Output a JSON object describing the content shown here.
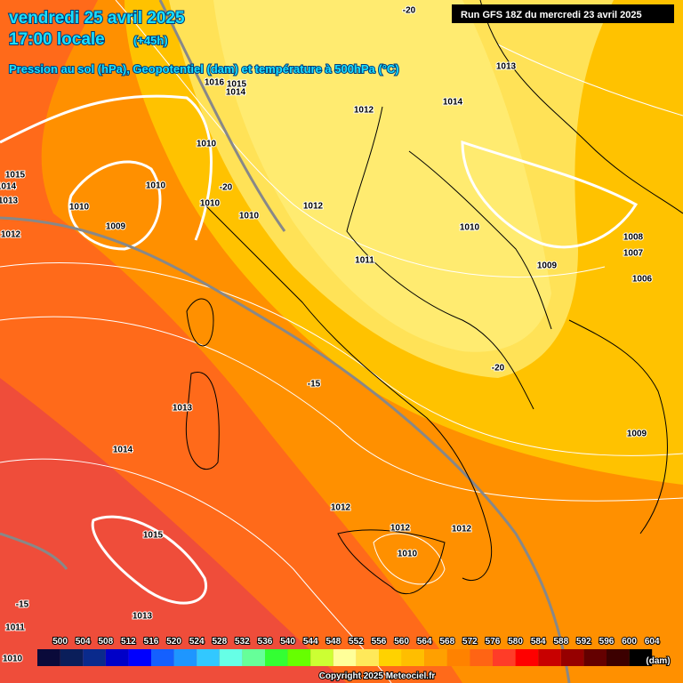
{
  "header": {
    "date": "vendredi 25 avril 2025",
    "time": "17:00 locale",
    "lead": "(+45h)",
    "subtitle": "Pression au sol (hPa), Geopotentiel (dam) et température à 500hPa (°C)",
    "run": "Run GFS 18Z du mercredi 23 avril 2025"
  },
  "map": {
    "isobar_labels": [
      "1013",
      "1016",
      "1015",
      "1014",
      "1012",
      "1014",
      "1010",
      "1015",
      "1014",
      "1013",
      "1010",
      "1010",
      "1010",
      "1010",
      "1012",
      "1009",
      "1012",
      "1010",
      "1008",
      "1007",
      "1009",
      "1011",
      "1006",
      "1013",
      "1014",
      "1009",
      "1012",
      "1012",
      "1012",
      "1015",
      "1010",
      "1013",
      "1011",
      "1010"
    ],
    "temperature_labels": [
      "-20",
      "-20",
      "-20",
      "-15",
      "-15"
    ]
  },
  "legend": {
    "values": [
      500,
      504,
      508,
      512,
      516,
      520,
      524,
      528,
      532,
      536,
      540,
      544,
      548,
      552,
      556,
      560,
      564,
      568,
      572,
      576,
      580,
      584,
      588,
      592,
      596,
      600,
      604
    ],
    "colors": [
      "#0a0a3a",
      "#0a1e5a",
      "#0a2a8c",
      "#0000c8",
      "#0000ff",
      "#1460ff",
      "#1e96ff",
      "#32c8ff",
      "#66ffe6",
      "#66ff99",
      "#33ff33",
      "#66ff00",
      "#ccff33",
      "#ffff99",
      "#ffe95a",
      "#ffd200",
      "#ffbe00",
      "#ffa000",
      "#ff8200",
      "#ff6414",
      "#ff3c28",
      "#ff0000",
      "#c80000",
      "#960000",
      "#640000",
      "#3c0000",
      "#000000"
    ],
    "unit": "(dam)"
  },
  "footer": {
    "copyright": "Copyright 2025 Meteociel.fr"
  }
}
